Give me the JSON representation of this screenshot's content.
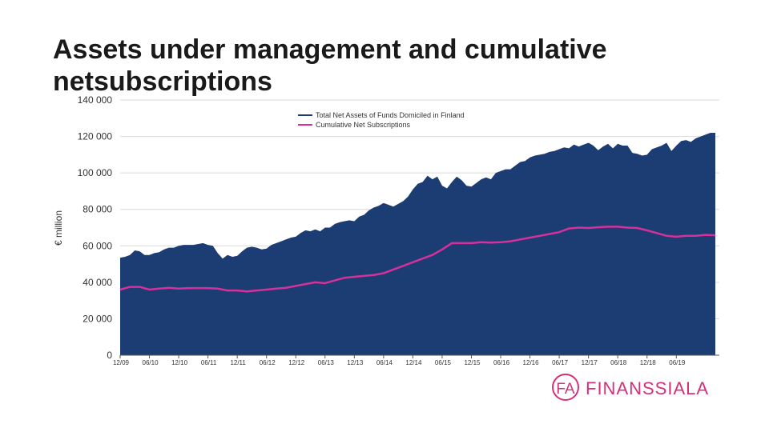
{
  "chart_data": {
    "type": "area",
    "title": "Assets under management and cumulative netsubscriptions",
    "ylabel": "€ million",
    "ylim": [
      0,
      140000
    ],
    "y_ticks": [
      "0",
      "20 000",
      "40 000",
      "60 000",
      "80 000",
      "100 000",
      "120 000",
      "140 000"
    ],
    "x_ticks": [
      "12/09",
      "06/10",
      "12/10",
      "06/11",
      "12/11",
      "06/12",
      "12/12",
      "06/13",
      "12/13",
      "06/14",
      "12/14",
      "06/15",
      "12/15",
      "06/16",
      "12/16",
      "06/17",
      "12/17",
      "06/18",
      "12/18",
      "06/19"
    ],
    "legend_position": "top-right",
    "series": [
      {
        "name": "Total Net Assets of Funds Domiciled in Finland",
        "color": "#1b3d73",
        "style": "area",
        "t": [
          0,
          1,
          2,
          3,
          4,
          5,
          6,
          7,
          8,
          9,
          10,
          11,
          12,
          13,
          14,
          15,
          16,
          17,
          18,
          19,
          20,
          21,
          22,
          23,
          24,
          25,
          26,
          27,
          28,
          29,
          30,
          31,
          32,
          33,
          34,
          35,
          36,
          37,
          38,
          39,
          40,
          41,
          42,
          43,
          44,
          45,
          46,
          47,
          48,
          49,
          50,
          51,
          52,
          53,
          54,
          55,
          56,
          57,
          58,
          59,
          60,
          61,
          62,
          63,
          64,
          65,
          66,
          67,
          68,
          69,
          70,
          71,
          72,
          73,
          74,
          75,
          76,
          77,
          78,
          79,
          80,
          81,
          82,
          83,
          84,
          85,
          86,
          87,
          88,
          89,
          90,
          91,
          92,
          93,
          94,
          95,
          96,
          97,
          98,
          99,
          100,
          101,
          102,
          103,
          104,
          105,
          106,
          107,
          108,
          109,
          110,
          111,
          112,
          113,
          114,
          115,
          116,
          117,
          118,
          119,
          120,
          121,
          122
        ],
        "values": [
          53500,
          54000,
          55000,
          57500,
          57000,
          55000,
          55000,
          56000,
          56500,
          58000,
          59000,
          59000,
          60000,
          60500,
          60500,
          60500,
          61000,
          61500,
          60500,
          60000,
          56000,
          53000,
          55000,
          54000,
          54500,
          57000,
          59000,
          59500,
          59000,
          58000,
          58500,
          60500,
          61500,
          62500,
          63500,
          64500,
          65000,
          67000,
          68500,
          68000,
          69000,
          68000,
          70000,
          70000,
          72000,
          73000,
          73500,
          74000,
          73500,
          76000,
          77000,
          79500,
          81000,
          82000,
          83500,
          82500,
          81500,
          83000,
          84500,
          87000,
          91000,
          94000,
          95000,
          98500,
          96500,
          98000,
          93000,
          91500,
          95000,
          98000,
          96000,
          93000,
          92500,
          94500,
          96500,
          97500,
          96500,
          100000,
          101000,
          102000,
          102000,
          104000,
          106000,
          106500,
          108500,
          109500,
          110000,
          110500,
          111500,
          112000,
          113000,
          114000,
          113500,
          115500,
          114500,
          115500,
          116500,
          115000,
          112500,
          114500,
          116000,
          113500,
          116000,
          115000,
          115000,
          111000,
          110500,
          109500,
          110000,
          113000,
          114000,
          115000,
          116500,
          112000,
          115000,
          117500,
          118000,
          117000,
          119000,
          120000,
          121000,
          122000,
          122000
        ]
      },
      {
        "name": "Cumulative Net Subscriptions",
        "color": "#d6309a",
        "style": "line",
        "t": [
          0,
          2,
          4,
          6,
          8,
          10,
          12,
          14,
          16,
          18,
          20,
          22,
          24,
          26,
          28,
          30,
          32,
          34,
          36,
          38,
          40,
          42,
          44,
          46,
          48,
          50,
          52,
          54,
          56,
          58,
          60,
          62,
          64,
          66,
          68,
          70,
          72,
          74,
          76,
          78,
          80,
          82,
          84,
          86,
          88,
          90,
          92,
          94,
          96,
          98,
          100,
          102,
          104,
          106,
          108,
          110,
          112,
          114,
          116,
          118,
          120,
          122
        ],
        "values": [
          36000,
          37500,
          37500,
          36000,
          36500,
          37000,
          36500,
          36800,
          36800,
          36800,
          36500,
          35500,
          35500,
          35000,
          35500,
          36000,
          36500,
          37000,
          38000,
          39000,
          40000,
          39500,
          41000,
          42500,
          43000,
          43500,
          44000,
          45000,
          47000,
          49000,
          51000,
          53000,
          55000,
          58000,
          61500,
          61500,
          61500,
          62000,
          61800,
          62000,
          62500,
          63500,
          64500,
          65500,
          66500,
          67500,
          69500,
          70000,
          69800,
          70200,
          70500,
          70500,
          70000,
          69800,
          68500,
          67000,
          65500,
          65000,
          65500,
          65500,
          66000,
          65800
        ]
      }
    ]
  },
  "logo": {
    "mark": "FA",
    "text": "FINANSSIALA",
    "color": "#d6307a"
  }
}
